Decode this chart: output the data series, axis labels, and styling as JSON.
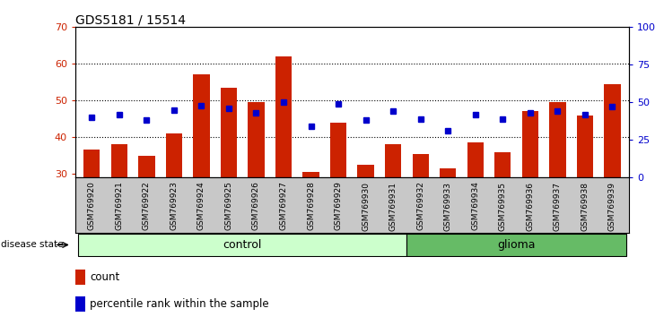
{
  "title": "GDS5181 / 15514",
  "samples": [
    "GSM769920",
    "GSM769921",
    "GSM769922",
    "GSM769923",
    "GSM769924",
    "GSM769925",
    "GSM769926",
    "GSM769927",
    "GSM769928",
    "GSM769929",
    "GSM769930",
    "GSM769931",
    "GSM769932",
    "GSM769933",
    "GSM769934",
    "GSM769935",
    "GSM769936",
    "GSM769937",
    "GSM769938",
    "GSM769939"
  ],
  "counts": [
    36.5,
    38.0,
    35.0,
    41.0,
    57.0,
    53.5,
    49.5,
    62.0,
    30.5,
    44.0,
    32.5,
    38.0,
    35.5,
    31.5,
    38.5,
    36.0,
    47.0,
    49.5,
    46.0,
    54.5
  ],
  "percentiles_pct": [
    40,
    42,
    38,
    45,
    48,
    46,
    43,
    50,
    34,
    49,
    38,
    44,
    39,
    31,
    42,
    39,
    43,
    44,
    42,
    47
  ],
  "control_count": 12,
  "glioma_count": 8,
  "ylim_left": [
    29,
    70
  ],
  "ylim_right": [
    0,
    100
  ],
  "yticks_left": [
    30,
    40,
    50,
    60,
    70
  ],
  "yticks_right": [
    0,
    25,
    50,
    75,
    100
  ],
  "ytick_labels_right": [
    "0",
    "25",
    "50",
    "75",
    "100%"
  ],
  "bar_color": "#cc2200",
  "dot_color": "#0000cc",
  "bg_color_xtick": "#c8c8c8",
  "control_bg": "#ccffcc",
  "glioma_bg": "#66bb66",
  "control_label": "control",
  "glioma_label": "glioma",
  "disease_label": "disease state",
  "legend_count": "count",
  "legend_pct": "percentile rank within the sample",
  "dotted_lines": [
    40,
    50,
    60
  ]
}
